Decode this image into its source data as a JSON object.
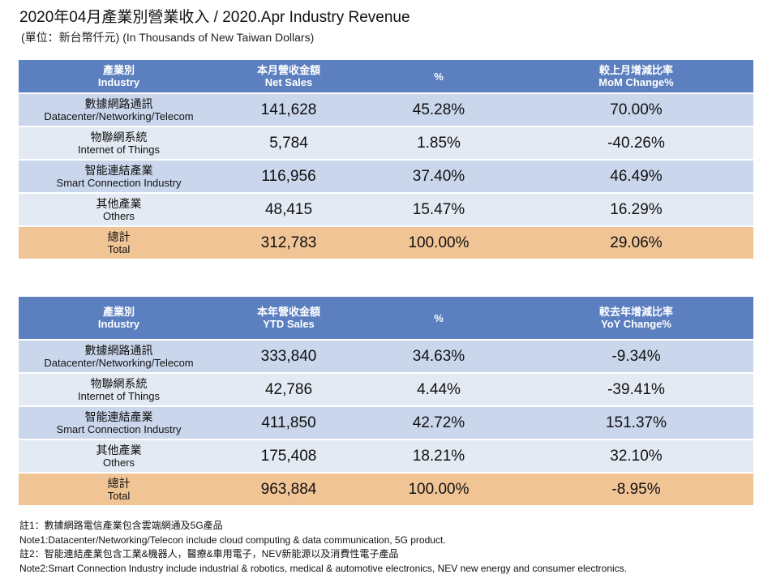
{
  "header": {
    "title": "2020年04月產業別營業收入  / 2020.Apr Industry Revenue",
    "subtitle": "(單位：新台幣仟元) (In Thousands of New Taiwan Dollars)"
  },
  "tables": [
    {
      "headers": [
        {
          "zh": "產業別",
          "en": "Industry"
        },
        {
          "zh": "本月營收金額",
          "en": "Net Sales"
        },
        {
          "zh": "%",
          "en": ""
        },
        {
          "zh": "較上月增減比率",
          "en": "MoM Change%"
        }
      ],
      "rows": [
        {
          "zh": "數據網路通訊",
          "en": "Datacenter/Networking/Telecom",
          "sales": "141,628",
          "pct": "45.28%",
          "change": "70.00%"
        },
        {
          "zh": "物聯網系統",
          "en": "Internet of Things",
          "sales": "5,784",
          "pct": "1.85%",
          "change": "-40.26%"
        },
        {
          "zh": "智能連結產業",
          "en": "Smart Connection Industry",
          "sales": "116,956",
          "pct": "37.40%",
          "change": "46.49%"
        },
        {
          "zh": "其他產業",
          "en": "Others",
          "sales": "48,415",
          "pct": "15.47%",
          "change": "16.29%"
        },
        {
          "zh": "總計",
          "en": "Total",
          "sales": "312,783",
          "pct": "100.00%",
          "change": "29.06%"
        }
      ]
    },
    {
      "headers": [
        {
          "zh": "產業別",
          "en": "Industry"
        },
        {
          "zh": "本年營收金額",
          "en": "YTD Sales"
        },
        {
          "zh": "%",
          "en": ""
        },
        {
          "zh": "較去年增減比率",
          "en": "YoY Change%"
        }
      ],
      "rows": [
        {
          "zh": "數據網路通訊",
          "en": "Datacenter/Networking/Telecom",
          "sales": "333,840",
          "pct": "34.63%",
          "change": "-9.34%"
        },
        {
          "zh": "物聯網系統",
          "en": "Internet of Things",
          "sales": "42,786",
          "pct": "4.44%",
          "change": "-39.41%"
        },
        {
          "zh": "智能連結產業",
          "en": "Smart Connection Industry",
          "sales": "411,850",
          "pct": "42.72%",
          "change": "151.37%"
        },
        {
          "zh": "其他產業",
          "en": "Others",
          "sales": "175,408",
          "pct": "18.21%",
          "change": "32.10%"
        },
        {
          "zh": "總計",
          "en": "Total",
          "sales": "963,884",
          "pct": "100.00%",
          "change": "-8.95%"
        }
      ]
    }
  ],
  "notes": [
    "註1：數據網路電信產業包含雲端網通及5G產品",
    "Note1:Datacenter/Networking/Telecon include cloud computing & data communication, 5G product.",
    "註2：智能連結產業包含工業&機器人，醫療&車用電子，NEV新能源以及消費性電子產品",
    "Note2:Smart Connection Industry include industrial & robotics, medical & automotive electronics, NEV new energy and consumer electronics."
  ],
  "colors": {
    "header_bg": "#5b7fbf",
    "row_odd": "#c9d6ec",
    "row_even": "#e4eaf3",
    "total_row": "#f1c496"
  }
}
